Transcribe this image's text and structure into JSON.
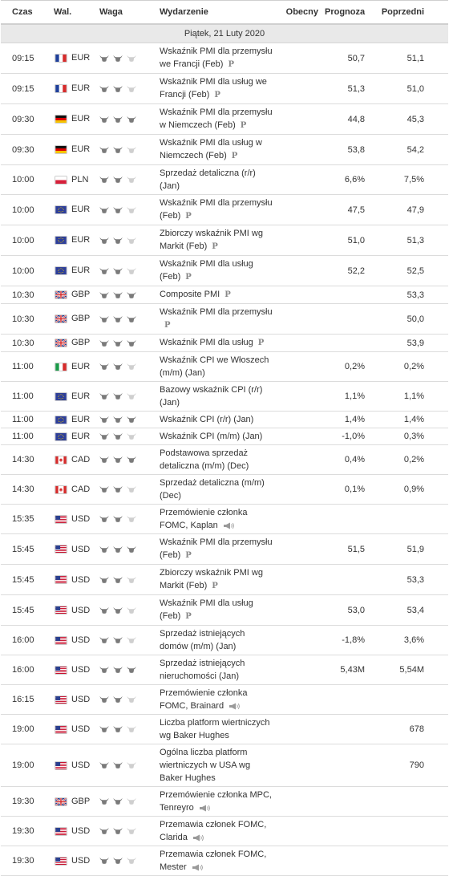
{
  "headers": {
    "time": "Czas",
    "currency": "Wal.",
    "importance": "Waga",
    "event": "Wydarzenie",
    "actual": "Obecny",
    "forecast": "Prognoza",
    "previous": "Poprzedni"
  },
  "date_label": "Piątek, 21 Luty 2020",
  "colors": {
    "bull_active": "#7a7a7a",
    "bull_inactive": "#cfcfcf",
    "date_bg": "#e9e9e9",
    "grid": "#dcdcdc"
  },
  "events": [
    {
      "time": "09:15",
      "flag": "fr",
      "currency": "EUR",
      "importance": 2,
      "event": "Wskaźnik PMI dla przemysłu we Francji (Feb)",
      "badge": "P",
      "actual": "",
      "forecast": "50,7",
      "previous": "51,1"
    },
    {
      "time": "09:15",
      "flag": "fr",
      "currency": "EUR",
      "importance": 2,
      "event": "Wskaźnik PMI dla usług we Francji (Feb)",
      "badge": "P",
      "actual": "",
      "forecast": "51,3",
      "previous": "51,0"
    },
    {
      "time": "09:30",
      "flag": "de",
      "currency": "EUR",
      "importance": 3,
      "event": "Wskaźnik PMI dla przemysłu w Niemczech (Feb)",
      "badge": "P",
      "actual": "",
      "forecast": "44,8",
      "previous": "45,3"
    },
    {
      "time": "09:30",
      "flag": "de",
      "currency": "EUR",
      "importance": 2,
      "event": "Wskaźnik PMI dla usług w Niemczech (Feb)",
      "badge": "P",
      "actual": "",
      "forecast": "53,8",
      "previous": "54,2"
    },
    {
      "time": "10:00",
      "flag": "pl",
      "currency": "PLN",
      "importance": 2,
      "event": "Sprzedaż detaliczna (r/r) (Jan)",
      "badge": "",
      "actual": "",
      "forecast": "6,6%",
      "previous": "7,5%"
    },
    {
      "time": "10:00",
      "flag": "eu",
      "currency": "EUR",
      "importance": 2,
      "event": "Wskaźnik PMI dla przemysłu (Feb)",
      "badge": "P",
      "actual": "",
      "forecast": "47,5",
      "previous": "47,9"
    },
    {
      "time": "10:00",
      "flag": "eu",
      "currency": "EUR",
      "importance": 2,
      "event": "Zbiorczy wskaźnik PMI wg Markit (Feb)",
      "badge": "P",
      "actual": "",
      "forecast": "51,0",
      "previous": "51,3"
    },
    {
      "time": "10:00",
      "flag": "eu",
      "currency": "EUR",
      "importance": 2,
      "event": "Wskaźnik PMI dla usług (Feb)",
      "badge": "P",
      "actual": "",
      "forecast": "52,2",
      "previous": "52,5"
    },
    {
      "time": "10:30",
      "flag": "gb",
      "currency": "GBP",
      "importance": 3,
      "event": "Composite PMI",
      "badge": "P",
      "actual": "",
      "forecast": "",
      "previous": "53,3"
    },
    {
      "time": "10:30",
      "flag": "gb",
      "currency": "GBP",
      "importance": 3,
      "event": "Wskaźnik PMI dla przemysłu",
      "badge": "P",
      "actual": "",
      "forecast": "",
      "previous": "50,0"
    },
    {
      "time": "10:30",
      "flag": "gb",
      "currency": "GBP",
      "importance": 3,
      "event": "Wskaźnik PMI dla usług",
      "badge": "P",
      "actual": "",
      "forecast": "",
      "previous": "53,9"
    },
    {
      "time": "11:00",
      "flag": "it",
      "currency": "EUR",
      "importance": 2,
      "event": "Wskaźnik CPI we Włoszech (m/m) (Jan)",
      "badge": "",
      "actual": "",
      "forecast": "0,2%",
      "previous": "0,2%"
    },
    {
      "time": "11:00",
      "flag": "eu",
      "currency": "EUR",
      "importance": 2,
      "event": "Bazowy wskaźnik CPI (r/r) (Jan)",
      "badge": "",
      "actual": "",
      "forecast": "1,1%",
      "previous": "1,1%"
    },
    {
      "time": "11:00",
      "flag": "eu",
      "currency": "EUR",
      "importance": 3,
      "event": "Wskaźnik CPI (r/r) (Jan)",
      "badge": "",
      "actual": "",
      "forecast": "1,4%",
      "previous": "1,4%"
    },
    {
      "time": "11:00",
      "flag": "eu",
      "currency": "EUR",
      "importance": 2,
      "event": "Wskaźnik CPI (m/m) (Jan)",
      "badge": "",
      "actual": "",
      "forecast": "-1,0%",
      "previous": "0,3%"
    },
    {
      "time": "14:30",
      "flag": "ca",
      "currency": "CAD",
      "importance": 3,
      "event": "Podstawowa sprzedaż detaliczna (m/m) (Dec)",
      "badge": "",
      "actual": "",
      "forecast": "0,4%",
      "previous": "0,2%"
    },
    {
      "time": "14:30",
      "flag": "ca",
      "currency": "CAD",
      "importance": 2,
      "event": "Sprzedaż detaliczna (m/m) (Dec)",
      "badge": "",
      "actual": "",
      "forecast": "0,1%",
      "previous": "0,9%"
    },
    {
      "time": "15:35",
      "flag": "us",
      "currency": "USD",
      "importance": 2,
      "event": "Przemówienie członka FOMC, Kaplan",
      "badge": "speech",
      "actual": "",
      "forecast": "",
      "previous": ""
    },
    {
      "time": "15:45",
      "flag": "us",
      "currency": "USD",
      "importance": 3,
      "event": "Wskaźnik PMI dla przemysłu (Feb)",
      "badge": "P",
      "actual": "",
      "forecast": "51,5",
      "previous": "51,9"
    },
    {
      "time": "15:45",
      "flag": "us",
      "currency": "USD",
      "importance": 2,
      "event": "Zbiorczy wskaźnik PMI wg Markit (Feb)",
      "badge": "P",
      "actual": "",
      "forecast": "",
      "previous": "53,3"
    },
    {
      "time": "15:45",
      "flag": "us",
      "currency": "USD",
      "importance": 2,
      "event": "Wskaźnik PMI dla usług (Feb)",
      "badge": "P",
      "actual": "",
      "forecast": "53,0",
      "previous": "53,4"
    },
    {
      "time": "16:00",
      "flag": "us",
      "currency": "USD",
      "importance": 2,
      "event": "Sprzedaż istniejących domów (m/m) (Jan)",
      "badge": "",
      "actual": "",
      "forecast": "-1,8%",
      "previous": "3,6%"
    },
    {
      "time": "16:00",
      "flag": "us",
      "currency": "USD",
      "importance": 3,
      "event": "Sprzedaż istniejących nieruchomości (Jan)",
      "badge": "",
      "actual": "",
      "forecast": "5,43M",
      "previous": "5,54M"
    },
    {
      "time": "16:15",
      "flag": "us",
      "currency": "USD",
      "importance": 2,
      "event": "Przemówienie członka FOMC, Brainard",
      "badge": "speech",
      "actual": "",
      "forecast": "",
      "previous": ""
    },
    {
      "time": "19:00",
      "flag": "us",
      "currency": "USD",
      "importance": 2,
      "event": "Liczba platform wiertniczych wg Baker Hughes",
      "badge": "",
      "actual": "",
      "forecast": "",
      "previous": "678"
    },
    {
      "time": "19:00",
      "flag": "us",
      "currency": "USD",
      "importance": 2,
      "event": "Ogólna liczba platform wiertniczych w USA wg Baker Hughes",
      "badge": "",
      "actual": "",
      "forecast": "",
      "previous": "790"
    },
    {
      "time": "19:30",
      "flag": "gb",
      "currency": "GBP",
      "importance": 2,
      "event": "Przemówienie członka MPC, Tenreyro",
      "badge": "speech",
      "actual": "",
      "forecast": "",
      "previous": ""
    },
    {
      "time": "19:30",
      "flag": "us",
      "currency": "USD",
      "importance": 2,
      "event": "Przemawia członek FOMC, Clarida",
      "badge": "speech",
      "actual": "",
      "forecast": "",
      "previous": ""
    },
    {
      "time": "19:30",
      "flag": "us",
      "currency": "USD",
      "importance": 2,
      "event": "Przemawia członek FOMC, Mester",
      "badge": "speech",
      "actual": "",
      "forecast": "",
      "previous": ""
    }
  ]
}
